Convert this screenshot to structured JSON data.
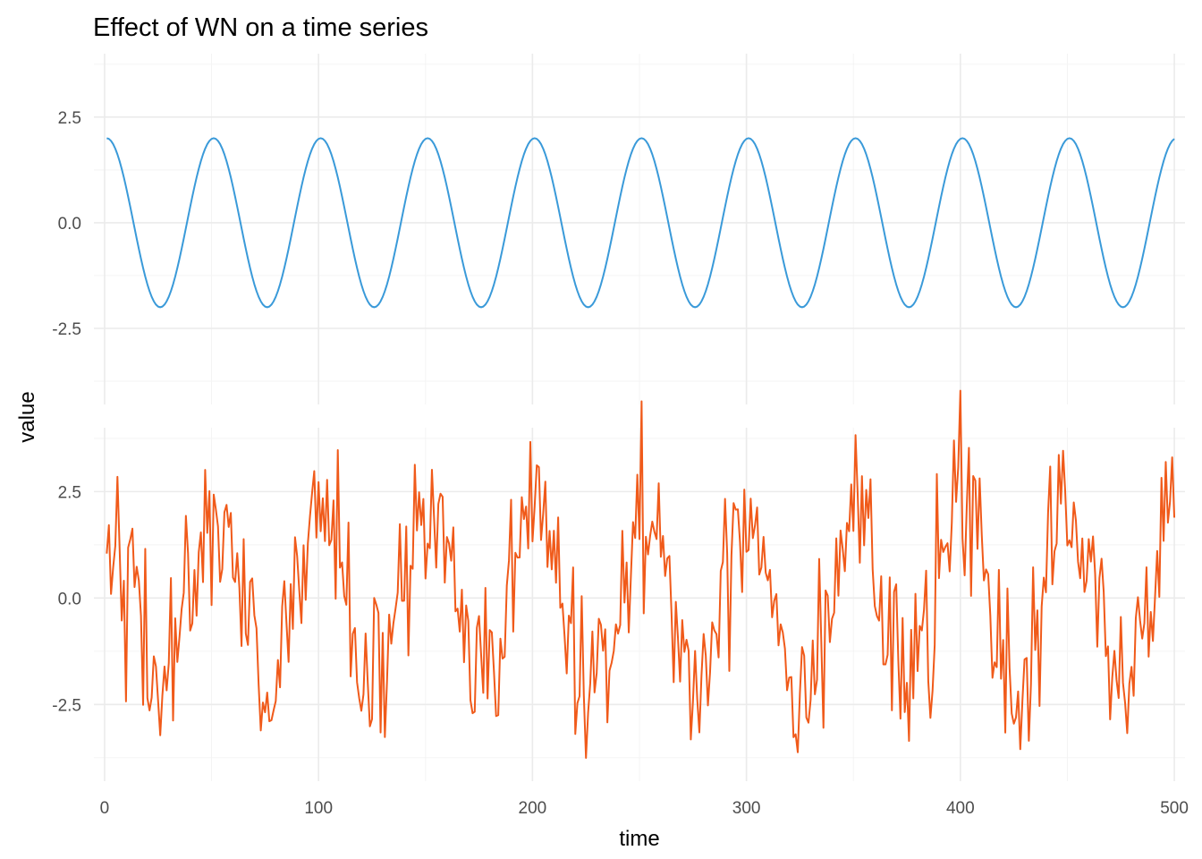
{
  "chart_data": {
    "type": "line",
    "title": "Effect of WN on a time series",
    "xlabel": "time",
    "ylabel": "value",
    "xlim": [
      -5,
      505
    ],
    "ylim": [
      -4.3,
      4.0
    ],
    "x_ticks": [
      0,
      100,
      200,
      300,
      400,
      500
    ],
    "x_tick_labels": [
      "0",
      "100",
      "200",
      "300",
      "400",
      "500"
    ],
    "y_ticks": [
      -2.5,
      0.0,
      2.5
    ],
    "y_tick_labels": [
      "-2.5",
      "0.0",
      "2.5"
    ],
    "grid": true,
    "legend": "none",
    "layout": "two vertically stacked panels sharing the x axis",
    "series": [
      {
        "panel": 1,
        "color": "#3a9ad9",
        "x_start": 1,
        "x_end": 500,
        "x_step": 1,
        "values_formula": "2 * cos(2*pi*(t-1)/50)",
        "period": 50,
        "amplitude": 2
      },
      {
        "panel": 2,
        "color": "#f05a1a",
        "x_start": 1,
        "x_end": 500,
        "x_step": 1,
        "values_formula": "2 * cos(2*pi*(t-1)/50) + white noise",
        "noise_sd": 1.0,
        "noise_seed": 42
      }
    ]
  }
}
